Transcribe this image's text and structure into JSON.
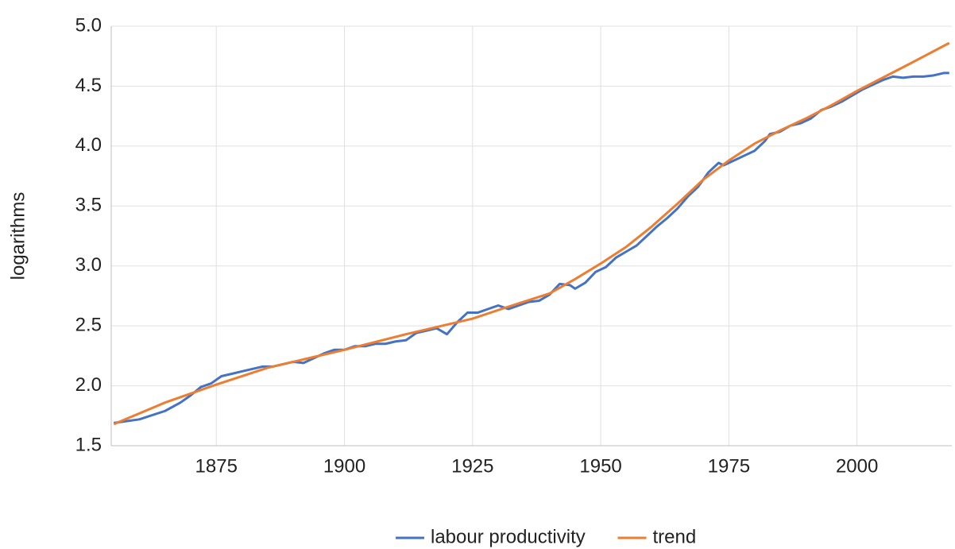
{
  "chart_data": {
    "type": "line",
    "y_label": "logarithms",
    "xlim": [
      1854.5,
      2018.5
    ],
    "xticks": [
      1875,
      1900,
      1925,
      1950,
      1975,
      2000
    ],
    "ylim": [
      1.5,
      5.0
    ],
    "yticks": [
      {
        "value": 1.5,
        "label": "1.5"
      },
      {
        "value": 2.0,
        "label": "2.0"
      },
      {
        "value": 2.5,
        "label": "2.5"
      },
      {
        "value": 3.0,
        "label": "3.0"
      },
      {
        "value": 3.5,
        "label": "3.5"
      },
      {
        "value": 4.0,
        "label": "4.0"
      },
      {
        "value": 4.5,
        "label": "4.5"
      },
      {
        "value": 5.0,
        "label": "5.0"
      }
    ],
    "grid": true,
    "legend": "bottom",
    "series": [
      {
        "name": "labour productivity",
        "color": "#4472c4",
        "x": [
          1855,
          1860,
          1865,
          1868,
          1870,
          1872,
          1874,
          1876,
          1878,
          1880,
          1882,
          1884,
          1886,
          1888,
          1890,
          1892,
          1894,
          1896,
          1898,
          1900,
          1902,
          1904,
          1906,
          1908,
          1910,
          1912,
          1914,
          1916,
          1918,
          1920,
          1922,
          1924,
          1926,
          1928,
          1930,
          1932,
          1934,
          1936,
          1938,
          1940,
          1942,
          1944,
          1945,
          1947,
          1949,
          1951,
          1953,
          1955,
          1957,
          1959,
          1961,
          1963,
          1965,
          1967,
          1969,
          1971,
          1973,
          1974,
          1976,
          1978,
          1980,
          1982,
          1983,
          1985,
          1987,
          1989,
          1991,
          1993,
          1995,
          1997,
          1999,
          2001,
          2003,
          2005,
          2007,
          2009,
          2011,
          2013,
          2015,
          2017,
          2018
        ],
        "values": [
          1.69,
          1.72,
          1.79,
          1.86,
          1.92,
          1.99,
          2.02,
          2.08,
          2.1,
          2.12,
          2.14,
          2.16,
          2.16,
          2.18,
          2.2,
          2.19,
          2.23,
          2.27,
          2.3,
          2.3,
          2.33,
          2.33,
          2.35,
          2.35,
          2.37,
          2.38,
          2.44,
          2.46,
          2.48,
          2.43,
          2.53,
          2.61,
          2.61,
          2.64,
          2.67,
          2.64,
          2.67,
          2.7,
          2.71,
          2.76,
          2.85,
          2.84,
          2.81,
          2.86,
          2.95,
          2.99,
          3.07,
          3.12,
          3.17,
          3.25,
          3.33,
          3.4,
          3.48,
          3.58,
          3.66,
          3.78,
          3.86,
          3.84,
          3.88,
          3.92,
          3.96,
          4.04,
          4.1,
          4.12,
          4.17,
          4.19,
          4.23,
          4.3,
          4.33,
          4.37,
          4.42,
          4.47,
          4.51,
          4.55,
          4.58,
          4.57,
          4.58,
          4.58,
          4.59,
          4.61,
          4.61
        ]
      },
      {
        "name": "trend",
        "color": "#ed7d31",
        "x": [
          1855,
          1865,
          1875,
          1885,
          1900,
          1912,
          1925,
          1932,
          1940,
          1945,
          1950,
          1955,
          1960,
          1965,
          1970,
          1975,
          1980,
          1985,
          1990,
          1995,
          2000,
          2005,
          2010,
          2018
        ],
        "values": [
          1.68,
          1.86,
          2.01,
          2.15,
          2.3,
          2.43,
          2.56,
          2.66,
          2.77,
          2.89,
          3.02,
          3.16,
          3.33,
          3.52,
          3.72,
          3.88,
          4.02,
          4.13,
          4.23,
          4.34,
          4.46,
          4.57,
          4.68,
          4.86
        ]
      }
    ]
  }
}
